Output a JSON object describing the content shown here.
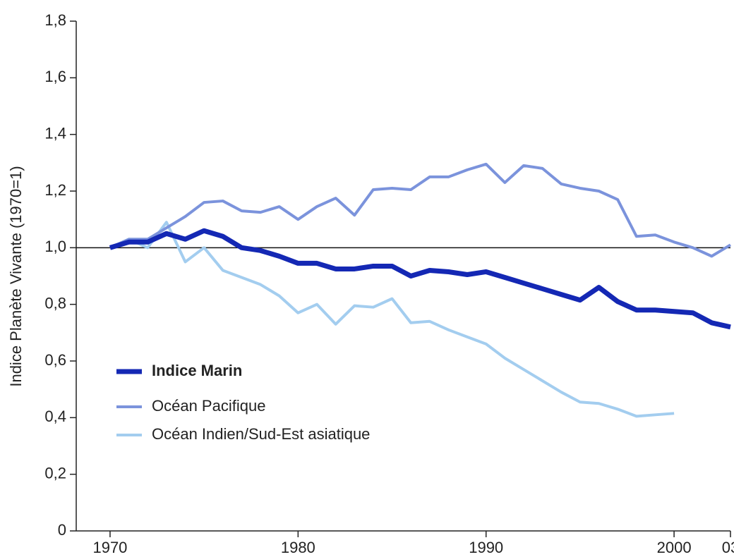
{
  "chart_data": {
    "type": "line",
    "y_label": "Indice Planète Vivante (1970=1)",
    "x": [
      1970,
      1971,
      1972,
      1973,
      1974,
      1975,
      1976,
      1977,
      1978,
      1979,
      1980,
      1981,
      1982,
      1983,
      1984,
      1985,
      1986,
      1987,
      1988,
      1989,
      1990,
      1991,
      1992,
      1993,
      1994,
      1995,
      1996,
      1997,
      1998,
      1999,
      2000,
      2001,
      2002,
      2003
    ],
    "series": [
      {
        "name": "Indice Marin",
        "color": "#1428b4",
        "values": [
          1.0,
          1.02,
          1.02,
          1.05,
          1.03,
          1.06,
          1.04,
          1.0,
          0.99,
          0.97,
          0.945,
          0.945,
          0.925,
          0.925,
          0.935,
          0.935,
          0.9,
          0.92,
          0.915,
          0.905,
          0.915,
          0.895,
          0.875,
          0.855,
          0.835,
          0.815,
          0.86,
          0.81,
          0.78,
          0.78,
          0.775,
          0.77,
          0.735,
          0.72
        ]
      },
      {
        "name": "Océan Pacifique",
        "color": "#7b93dc",
        "values": [
          1.0,
          1.03,
          1.03,
          1.07,
          1.11,
          1.16,
          1.165,
          1.13,
          1.125,
          1.145,
          1.1,
          1.145,
          1.175,
          1.115,
          1.205,
          1.21,
          1.205,
          1.25,
          1.25,
          1.275,
          1.295,
          1.23,
          1.29,
          1.28,
          1.225,
          1.21,
          1.2,
          1.17,
          1.04,
          1.045,
          1.02,
          1.0,
          0.97,
          1.01
        ]
      },
      {
        "name": "Océan Indien/Sud-Est asiatique",
        "color": "#a3cdef",
        "values": [
          1.0,
          1.03,
          1.0,
          1.09,
          0.95,
          1.0,
          0.92,
          0.895,
          0.87,
          0.83,
          0.77,
          0.8,
          0.73,
          0.795,
          0.79,
          0.82,
          0.735,
          0.74,
          0.71,
          0.685,
          0.66,
          0.61,
          0.57,
          0.53,
          0.49,
          0.455,
          0.45,
          0.43,
          0.405,
          0.41,
          0.415,
          null,
          null,
          null
        ]
      }
    ],
    "xlim": [
      1968.2,
      2003
    ],
    "xticks": [
      1970,
      1980,
      1990,
      2000,
      {
        "value": 2003,
        "label": "03"
      }
    ],
    "ylim": [
      0,
      1.8
    ],
    "yticks": [
      0,
      {
        "value": 0.2,
        "label": "0,2"
      },
      {
        "value": 0.4,
        "label": "0,4"
      },
      {
        "value": 0.6,
        "label": "0,6"
      },
      {
        "value": 0.8,
        "label": "0,8"
      },
      {
        "value": 1.0,
        "label": "1,0"
      },
      {
        "value": 1.2,
        "label": "1,2"
      },
      {
        "value": 1.4,
        "label": "1,4"
      },
      {
        "value": 1.6,
        "label": "1,6"
      },
      {
        "value": 1.8,
        "label": "1,8"
      }
    ],
    "reference_line": 1.0,
    "legend": "left",
    "grid": false
  }
}
